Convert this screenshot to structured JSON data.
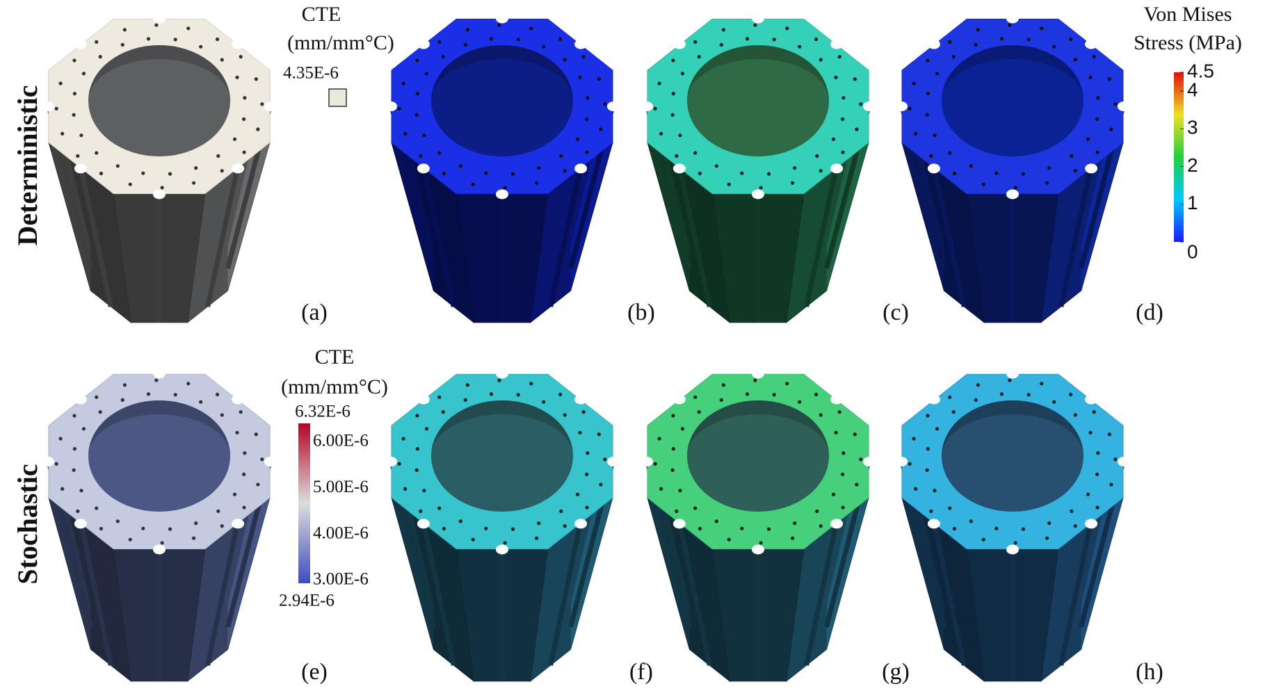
{
  "row_labels": [
    "Deterministic",
    "Stochastic"
  ],
  "panel_labels": [
    "(a)",
    "(b)",
    "(c)",
    "(d)",
    "(e)",
    "(f)",
    "(g)",
    "(h)"
  ],
  "cte_deterministic": {
    "title": [
      "CTE",
      "(mm/mm°C)"
    ],
    "value": "4.35E-6"
  },
  "cte_stochastic": {
    "title": [
      "CTE",
      "(mm/mm°C)"
    ],
    "max": "6.32E-6",
    "ticks": [
      "6.00E-6",
      "5.00E-6",
      "4.00E-6",
      "3.00E-6"
    ],
    "min": "2.94E-6"
  },
  "stress_colorbar": {
    "title": [
      "Von Mises",
      "Stress (MPa)"
    ],
    "range": [
      0,
      4.5
    ],
    "ticks": [
      0,
      1,
      2,
      3,
      4,
      4.5
    ]
  }
}
